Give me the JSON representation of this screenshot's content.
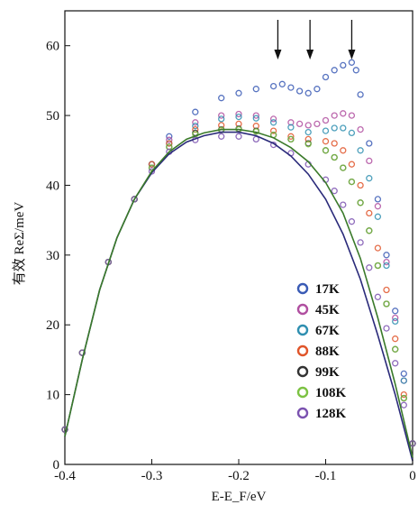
{
  "chart_data": {
    "type": "scatter",
    "xlabel": "E-E_F/eV",
    "ylabel": "有效 ReΣ/meV",
    "xlim": [
      -0.4,
      0
    ],
    "ylim": [
      0,
      65
    ],
    "xticks": [
      -0.4,
      -0.3,
      -0.2,
      -0.1,
      0
    ],
    "xtick_labels": [
      "-0.4",
      "-0.3",
      "-0.2",
      "-0.1",
      "0"
    ],
    "yticks": [
      0,
      10,
      20,
      30,
      40,
      50,
      60
    ],
    "ytick_labels": [
      "0",
      "10",
      "20",
      "30",
      "40",
      "50",
      "60"
    ],
    "grid": false,
    "legend_position": "bottom-right",
    "arrows_x": [
      -0.155,
      -0.118,
      -0.07
    ],
    "series": [
      {
        "name": "17K",
        "color": "#3a5bb5",
        "x": [
          -0.4,
          -0.38,
          -0.35,
          -0.32,
          -0.3,
          -0.28,
          -0.25,
          -0.22,
          -0.2,
          -0.18,
          -0.16,
          -0.15,
          -0.14,
          -0.13,
          -0.12,
          -0.11,
          -0.1,
          -0.09,
          -0.08,
          -0.07,
          -0.065,
          -0.06,
          -0.05,
          -0.04,
          -0.03,
          -0.02,
          -0.01,
          0.0
        ],
        "y": [
          5,
          16,
          29,
          38,
          43,
          47,
          50.5,
          52.5,
          53.2,
          53.8,
          54.2,
          54.5,
          54,
          53.5,
          53.2,
          53.8,
          55.5,
          56.5,
          57.2,
          57.6,
          56.5,
          53,
          46,
          38,
          30,
          22,
          13,
          3
        ]
      },
      {
        "name": "45K",
        "color": "#b04fa0",
        "x": [
          -0.4,
          -0.38,
          -0.35,
          -0.32,
          -0.3,
          -0.28,
          -0.25,
          -0.22,
          -0.2,
          -0.18,
          -0.16,
          -0.14,
          -0.13,
          -0.12,
          -0.11,
          -0.1,
          -0.09,
          -0.08,
          -0.07,
          -0.06,
          -0.05,
          -0.04,
          -0.03,
          -0.02,
          -0.01,
          0.0
        ],
        "y": [
          5,
          16,
          29,
          38,
          43,
          46.5,
          49,
          50,
          50.2,
          50,
          49.5,
          49,
          48.8,
          48.6,
          48.8,
          49.3,
          50,
          50.3,
          50,
          48,
          43.5,
          37,
          29,
          21,
          12,
          3
        ]
      },
      {
        "name": "67K",
        "color": "#2f8fb0",
        "x": [
          -0.4,
          -0.38,
          -0.35,
          -0.32,
          -0.3,
          -0.28,
          -0.25,
          -0.22,
          -0.2,
          -0.18,
          -0.16,
          -0.14,
          -0.12,
          -0.1,
          -0.09,
          -0.08,
          -0.07,
          -0.06,
          -0.05,
          -0.04,
          -0.03,
          -0.02,
          -0.01,
          0.0
        ],
        "y": [
          5,
          16,
          29,
          38,
          43,
          46,
          48.5,
          49.5,
          49.8,
          49.6,
          49,
          48.3,
          47.6,
          47.8,
          48.2,
          48.2,
          47.5,
          45,
          41,
          35.5,
          28.5,
          20.5,
          12,
          3
        ]
      },
      {
        "name": "88K",
        "color": "#e0552a",
        "x": [
          -0.4,
          -0.38,
          -0.35,
          -0.32,
          -0.3,
          -0.28,
          -0.25,
          -0.22,
          -0.2,
          -0.18,
          -0.16,
          -0.14,
          -0.12,
          -0.1,
          -0.09,
          -0.08,
          -0.07,
          -0.06,
          -0.05,
          -0.04,
          -0.03,
          -0.02,
          -0.01,
          0.0
        ],
        "y": [
          5,
          16,
          29,
          38,
          43,
          46,
          48,
          48.6,
          48.8,
          48.5,
          47.8,
          47,
          46.6,
          46.3,
          46,
          45,
          43,
          40,
          36,
          31,
          25,
          18,
          10,
          3
        ]
      },
      {
        "name": "99K",
        "color": "#333333",
        "x": [
          -0.4,
          -0.38,
          -0.35,
          -0.32,
          -0.3,
          -0.28,
          -0.25,
          -0.22,
          -0.2,
          -0.18,
          -0.16,
          -0.14,
          -0.12,
          -0.1,
          -0.09,
          -0.08,
          -0.07,
          -0.06,
          -0.05,
          -0.04,
          -0.03,
          -0.02,
          -0.01,
          0.0
        ],
        "y": [
          5,
          16,
          29,
          38,
          42.5,
          45.5,
          47.5,
          48,
          48.1,
          47.8,
          47.2,
          46.6,
          46,
          45,
          44,
          42.5,
          40.5,
          37.5,
          33.5,
          28.5,
          23,
          16.5,
          9.5,
          3
        ]
      },
      {
        "name": "108K",
        "color": "#7cc243",
        "x": [
          -0.4,
          -0.38,
          -0.35,
          -0.32,
          -0.3,
          -0.28,
          -0.25,
          -0.22,
          -0.2,
          -0.18,
          -0.16,
          -0.14,
          -0.12,
          -0.1,
          -0.09,
          -0.08,
          -0.07,
          -0.06,
          -0.05,
          -0.04,
          -0.03,
          -0.02,
          -0.01,
          0.0
        ],
        "y": [
          5,
          16,
          29,
          38,
          42.5,
          45.5,
          47.3,
          47.9,
          48,
          47.7,
          47.2,
          46.6,
          45.9,
          45,
          44,
          42.5,
          40.5,
          37.5,
          33.5,
          28.5,
          23,
          16.5,
          9.5,
          3
        ]
      },
      {
        "name": "128K",
        "color": "#7b52b0",
        "x": [
          -0.4,
          -0.38,
          -0.35,
          -0.32,
          -0.3,
          -0.28,
          -0.25,
          -0.22,
          -0.2,
          -0.18,
          -0.16,
          -0.14,
          -0.12,
          -0.1,
          -0.09,
          -0.08,
          -0.07,
          -0.06,
          -0.05,
          -0.04,
          -0.03,
          -0.02,
          -0.01,
          0.0
        ],
        "y": [
          5,
          16,
          29,
          38,
          42,
          44.8,
          46.5,
          47,
          47,
          46.6,
          45.8,
          44.6,
          43,
          40.8,
          39.2,
          37.2,
          34.8,
          31.8,
          28.2,
          24,
          19.5,
          14.5,
          8.5,
          3
        ]
      }
    ],
    "fit_curves": [
      {
        "color": "#2a2a7a",
        "x": [
          -0.4,
          -0.38,
          -0.36,
          -0.34,
          -0.32,
          -0.3,
          -0.28,
          -0.26,
          -0.24,
          -0.22,
          -0.2,
          -0.18,
          -0.16,
          -0.14,
          -0.12,
          -0.1,
          -0.08,
          -0.06,
          -0.04,
          -0.02,
          0.0
        ],
        "y": [
          4,
          15,
          25,
          32.5,
          38,
          41.8,
          44.5,
          46.2,
          47.1,
          47.6,
          47.6,
          47.1,
          46,
          44.2,
          41.6,
          38,
          33,
          26.5,
          18.5,
          10,
          0.5
        ]
      },
      {
        "color": "#3a7a2a",
        "x": [
          -0.4,
          -0.38,
          -0.36,
          -0.34,
          -0.32,
          -0.3,
          -0.28,
          -0.26,
          -0.24,
          -0.22,
          -0.2,
          -0.18,
          -0.16,
          -0.14,
          -0.12,
          -0.1,
          -0.08,
          -0.06,
          -0.04,
          -0.02,
          0.0
        ],
        "y": [
          4,
          15,
          25,
          32.5,
          38,
          42,
          44.8,
          46.6,
          47.5,
          48,
          48,
          47.6,
          46.8,
          45.4,
          43.4,
          40.4,
          36,
          29.5,
          21,
          11.5,
          1
        ]
      }
    ]
  }
}
